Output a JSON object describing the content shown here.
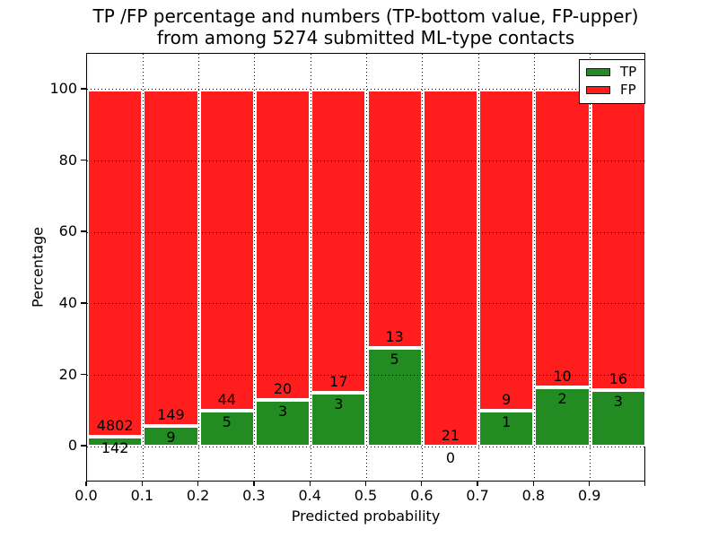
{
  "figure": {
    "title_line1": "TP /FP percentage and numbers (TP-bottom value, FP-upper)",
    "title_line2": "from among 5274 submitted ML-type contacts"
  },
  "chart_data": {
    "type": "bar",
    "subtype": "stacked-percentage-histogram",
    "title": "TP /FP percentage and numbers (TP-bottom value, FP-upper) from among 5274 submitted ML-type contacts",
    "xlabel": "Predicted probability",
    "ylabel": "Percentage",
    "xlim": [
      0.0,
      1.0
    ],
    "ylim": [
      -10,
      110
    ],
    "x_tick_labels": [
      "0.0",
      "0.1",
      "0.2",
      "0.3",
      "0.4",
      "0.5",
      "0.6",
      "0.7",
      "0.8",
      "0.9"
    ],
    "y_ticks": [
      0,
      20,
      40,
      60,
      80,
      100
    ],
    "grid": "dotted-black-both-axes",
    "total_contacts": 5274,
    "legend": {
      "position": "upper right",
      "entries": [
        {
          "label": "TP",
          "color": "#228b22"
        },
        {
          "label": "FP",
          "color": "#ff1d1d"
        }
      ]
    },
    "bins": [
      {
        "x_start": 0.0,
        "x_end": 0.1,
        "tp": 142,
        "fp": 4802
      },
      {
        "x_start": 0.1,
        "x_end": 0.2,
        "tp": 9,
        "fp": 149
      },
      {
        "x_start": 0.2,
        "x_end": 0.3,
        "tp": 5,
        "fp": 44
      },
      {
        "x_start": 0.3,
        "x_end": 0.4,
        "tp": 3,
        "fp": 20
      },
      {
        "x_start": 0.4,
        "x_end": 0.5,
        "tp": 3,
        "fp": 17
      },
      {
        "x_start": 0.5,
        "x_end": 0.6,
        "tp": 5,
        "fp": 13
      },
      {
        "x_start": 0.6,
        "x_end": 0.7,
        "tp": 0,
        "fp": 21
      },
      {
        "x_start": 0.7,
        "x_end": 0.8,
        "tp": 1,
        "fp": 9
      },
      {
        "x_start": 0.8,
        "x_end": 0.9,
        "tp": 2,
        "fp": 10
      },
      {
        "x_start": 0.9,
        "x_end": 1.0,
        "tp": 3,
        "fp": 16
      }
    ],
    "tp_percentages": [
      2.87,
      5.7,
      10.2,
      13.04,
      15.0,
      27.78,
      0.0,
      10.0,
      16.67,
      15.79
    ]
  }
}
